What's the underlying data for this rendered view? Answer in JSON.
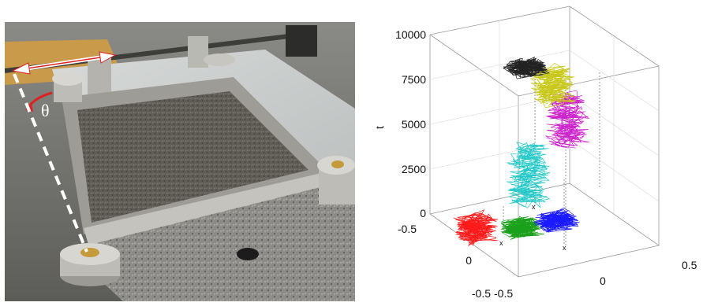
{
  "photo": {
    "angle_symbol": "θ"
  },
  "plot3d": {
    "z_axis_label": "t",
    "z_ticks": [
      "10000",
      "7500",
      "5000",
      "2500",
      "0"
    ],
    "x_ticks": [
      "-0.5",
      "0",
      "0.5"
    ],
    "y_ticks": [
      "-0.5",
      "0",
      "-0.5"
    ],
    "marker_symbol": "x"
  },
  "chart_data": {
    "type": "scatter",
    "title": "",
    "zlabel": "t",
    "zlim": [
      0,
      10000
    ],
    "series": [
      {
        "color": "#ff1a1a",
        "t_range": [
          0,
          1200
        ],
        "center": [
          -0.35,
          -0.1
        ]
      },
      {
        "color": "#1aa01a",
        "t_range": [
          0,
          600
        ],
        "center": [
          0.0,
          -0.05
        ]
      },
      {
        "color": "#1a1aff",
        "t_range": [
          0,
          600
        ],
        "center": [
          0.3,
          -0.05
        ]
      },
      {
        "color": "#22c8c8",
        "t_range": [
          2200,
          5400
        ],
        "center": [
          -0.05,
          0.15
        ]
      },
      {
        "color": "#cc22cc",
        "t_range": [
          5200,
          7800
        ],
        "center": [
          0.25,
          0.2
        ]
      },
      {
        "color": "#c8c81a",
        "t_range": [
          7800,
          9500
        ],
        "center": [
          0.1,
          0.25
        ]
      },
      {
        "color": "#222222",
        "t_range": [
          9500,
          10000
        ],
        "center": [
          -0.1,
          0.2
        ]
      }
    ]
  }
}
